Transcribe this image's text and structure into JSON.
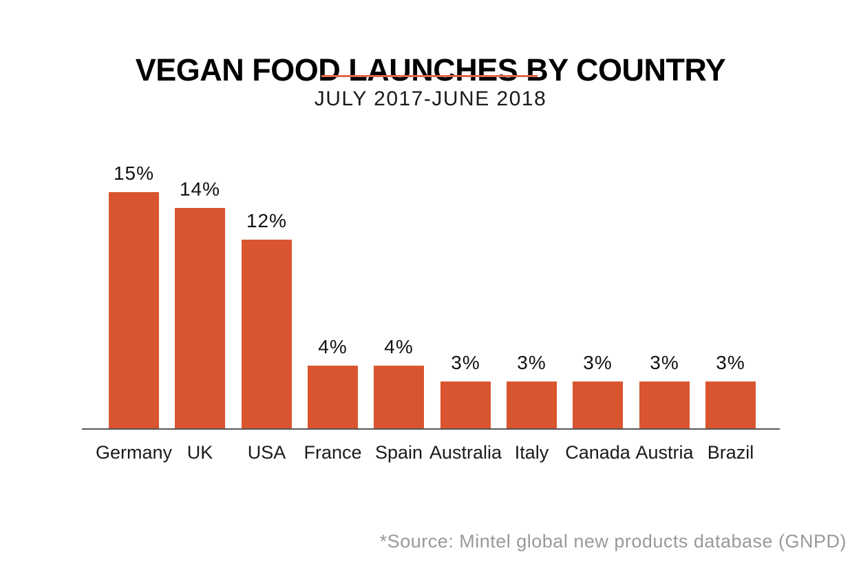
{
  "title": "VEGAN FOOD LAUNCHES BY COUNTRY",
  "subtitle": "JULY 2017-JUNE 2018",
  "source_note": "*Source: Mintel global new products database (GNPD)",
  "colors": {
    "bar": "#D8552F",
    "accent_rule": "#E2674B",
    "axis": "#555555",
    "text": "#1A1A1A",
    "source_text": "#999999",
    "background": "#FFFFFF"
  },
  "chart_data": {
    "type": "bar",
    "title": "VEGAN FOOD LAUNCHES BY COUNTRY",
    "subtitle": "JULY 2017-JUNE 2018",
    "categories": [
      "Germany",
      "UK",
      "USA",
      "France",
      "Spain",
      "Australia",
      "Italy",
      "Canada",
      "Austria",
      "Brazil"
    ],
    "values": [
      15,
      14,
      12,
      4,
      4,
      3,
      3,
      3,
      3,
      3
    ],
    "value_labels": [
      "15%",
      "14%",
      "12%",
      "4%",
      "4%",
      "3%",
      "3%",
      "3%",
      "3%",
      "3%"
    ],
    "unit": "%",
    "xlabel": "",
    "ylabel": "",
    "ylim": [
      0,
      16
    ],
    "grid": false,
    "legend": false,
    "bar_color": "#D8552F",
    "annotation": "*Source: Mintel global new products database (GNPD)"
  }
}
